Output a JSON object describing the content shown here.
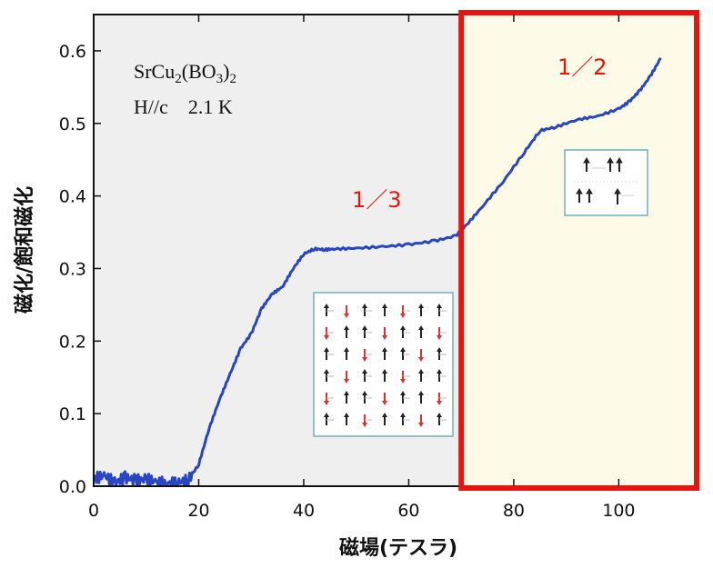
{
  "chart_data": {
    "type": "line",
    "title": "",
    "xlabel": "磁場(テスラ)",
    "ylabel": "磁化/飽和磁化",
    "xlim": [
      0,
      115
    ],
    "ylim": [
      0,
      0.65
    ],
    "x_ticks": [
      "0",
      "20",
      "40",
      "60",
      "80",
      "100"
    ],
    "x_tick_values": [
      0,
      20,
      40,
      60,
      80,
      100
    ],
    "y_ticks": [
      "0.0",
      "0.1",
      "0.2",
      "0.3",
      "0.4",
      "0.5",
      "0.6"
    ],
    "y_tick_values": [
      0.0,
      0.1,
      0.2,
      0.3,
      0.4,
      0.5,
      0.6
    ],
    "series": [
      {
        "color": "#2a45c4",
        "x": [
          0,
          2,
          4,
          6,
          8,
          10,
          12,
          14,
          16,
          18,
          20,
          22,
          24,
          26,
          28,
          30,
          32,
          34,
          36,
          38,
          40,
          42,
          44,
          46,
          50,
          55,
          60,
          65,
          69,
          71,
          74,
          78,
          82,
          85,
          88,
          92,
          96,
          100,
          102,
          104,
          106,
          108
        ],
        "y": [
          0.01,
          0.015,
          0.005,
          0.012,
          0.008,
          0.01,
          0.006,
          0.004,
          0.005,
          0.008,
          0.03,
          0.08,
          0.12,
          0.155,
          0.19,
          0.21,
          0.245,
          0.265,
          0.275,
          0.3,
          0.32,
          0.327,
          0.326,
          0.327,
          0.328,
          0.33,
          0.333,
          0.338,
          0.345,
          0.36,
          0.385,
          0.42,
          0.46,
          0.49,
          0.495,
          0.505,
          0.51,
          0.52,
          0.53,
          0.545,
          0.565,
          0.59
        ]
      }
    ],
    "regions": [
      {
        "x_range": [
          0,
          70
        ],
        "fill": "#efefef"
      },
      {
        "x_range": [
          70,
          115
        ],
        "fill": "#fdfbe8",
        "border": "#e8140f"
      }
    ],
    "annotations": {
      "compound": "SrCu2(BO3)2",
      "condition": "H//c    2.1 K",
      "plateau_third": "1／3",
      "plateau_half": "1／2"
    },
    "grid": false
  }
}
